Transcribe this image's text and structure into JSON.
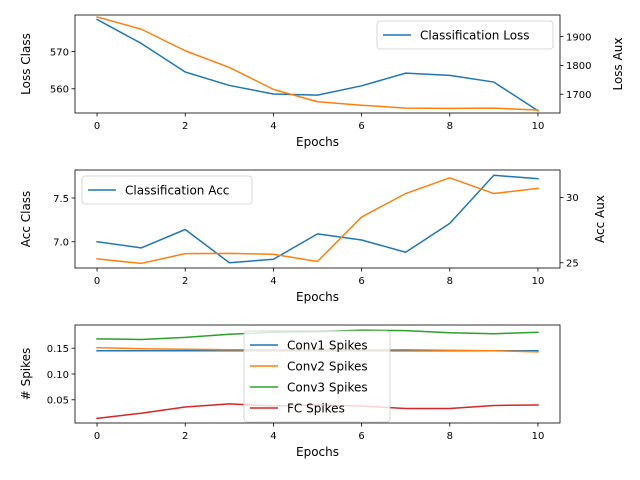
{
  "colors": {
    "c0": "#1f77b4",
    "c1": "#ff7f0e",
    "c2": "#2ca02c",
    "c3": "#d62728",
    "frame": "#000000",
    "legend_edge": "#cccccc"
  },
  "chart_data": [
    {
      "type": "line",
      "xlabel": "Epochs",
      "ylabel": "Loss Class",
      "ylabel_right": "Loss Aux",
      "xlim": [
        -0.5,
        10.5
      ],
      "ylim": [
        553.5,
        579.8
      ],
      "ylim_right": [
        1635,
        1975
      ],
      "x_ticks": [
        0,
        2,
        4,
        6,
        8,
        10
      ],
      "y_ticks": [
        560,
        570
      ],
      "y_ticks_right": [
        1700,
        1800,
        1900
      ],
      "grid": false,
      "legend_position": "upper right",
      "series": [
        {
          "name": "Classification Loss",
          "axis": "left",
          "color": "#1f77b4",
          "x": [
            0,
            1,
            2,
            3,
            4,
            5,
            6,
            7,
            8,
            9,
            10
          ],
          "y": [
            578.6,
            572.2,
            564.5,
            560.9,
            558.6,
            558.3,
            560.8,
            564.2,
            563.6,
            561.8,
            554.1
          ]
        },
        {
          "name": "",
          "axis": "right",
          "color": "#ff7f0e",
          "x": [
            0,
            1,
            2,
            3,
            4,
            5,
            6,
            7,
            8,
            9,
            10
          ],
          "y": [
            1968,
            1926,
            1851,
            1793,
            1717,
            1674,
            1662,
            1652,
            1651,
            1652,
            1645
          ]
        }
      ]
    },
    {
      "type": "line",
      "xlabel": "Epochs",
      "ylabel": "Acc Class",
      "ylabel_right": "Acc Aux",
      "xlim": [
        -0.5,
        10.5
      ],
      "ylim": [
        6.7,
        7.82
      ],
      "ylim_right": [
        24.6,
        32.1
      ],
      "x_ticks": [
        0,
        2,
        4,
        6,
        8,
        10
      ],
      "y_ticks": [
        7.0,
        7.5
      ],
      "y_tick_labels": [
        "7.0",
        "7.5"
      ],
      "y_ticks_right": [
        25,
        30
      ],
      "grid": false,
      "legend_position": "upper left",
      "series": [
        {
          "name": "Classification Acc",
          "axis": "left",
          "color": "#1f77b4",
          "x": [
            0,
            1,
            2,
            3,
            4,
            5,
            6,
            7,
            8,
            9,
            10
          ],
          "y": [
            7.0,
            6.93,
            7.14,
            6.76,
            6.8,
            7.09,
            7.02,
            6.88,
            7.21,
            7.76,
            7.72
          ]
        },
        {
          "name": "",
          "axis": "right",
          "color": "#ff7f0e",
          "x": [
            0,
            1,
            2,
            3,
            4,
            5,
            6,
            7,
            8,
            9,
            10
          ],
          "y": [
            25.3,
            24.95,
            25.7,
            25.72,
            25.65,
            25.1,
            28.5,
            30.3,
            31.5,
            30.3,
            30.7
          ]
        }
      ]
    },
    {
      "type": "line",
      "xlabel": "Epochs",
      "ylabel": "# Spikes",
      "xlim": [
        -0.5,
        10.5
      ],
      "ylim": [
        0.005,
        0.195
      ],
      "x_ticks": [
        0,
        2,
        4,
        6,
        8,
        10
      ],
      "y_ticks": [
        0.05,
        0.1,
        0.15
      ],
      "y_tick_labels": [
        "0.05",
        "0.10",
        "0.15"
      ],
      "grid": false,
      "legend_position": "center",
      "series": [
        {
          "name": "Conv1 Spikes",
          "color": "#1f77b4",
          "x": [
            0,
            1,
            2,
            3,
            4,
            5,
            6,
            7,
            8,
            9,
            10
          ],
          "y": [
            0.145,
            0.145,
            0.145,
            0.145,
            0.145,
            0.145,
            0.145,
            0.145,
            0.145,
            0.145,
            0.145
          ]
        },
        {
          "name": "Conv2 Spikes",
          "color": "#ff7f0e",
          "x": [
            0,
            1,
            2,
            3,
            4,
            5,
            6,
            7,
            8,
            9,
            10
          ],
          "y": [
            0.151,
            0.149,
            0.148,
            0.147,
            0.147,
            0.147,
            0.147,
            0.147,
            0.146,
            0.145,
            0.143
          ]
        },
        {
          "name": "Conv3 Spikes",
          "color": "#2ca02c",
          "x": [
            0,
            1,
            2,
            3,
            4,
            5,
            6,
            7,
            8,
            9,
            10
          ],
          "y": [
            0.168,
            0.167,
            0.171,
            0.177,
            0.181,
            0.182,
            0.185,
            0.184,
            0.18,
            0.178,
            0.181
          ]
        },
        {
          "name": "FC Spikes",
          "color": "#d62728",
          "x": [
            0,
            1,
            2,
            3,
            4,
            5,
            6,
            7,
            8,
            9,
            10
          ],
          "y": [
            0.014,
            0.024,
            0.036,
            0.042,
            0.038,
            0.04,
            0.038,
            0.033,
            0.033,
            0.039,
            0.04
          ]
        }
      ]
    }
  ]
}
